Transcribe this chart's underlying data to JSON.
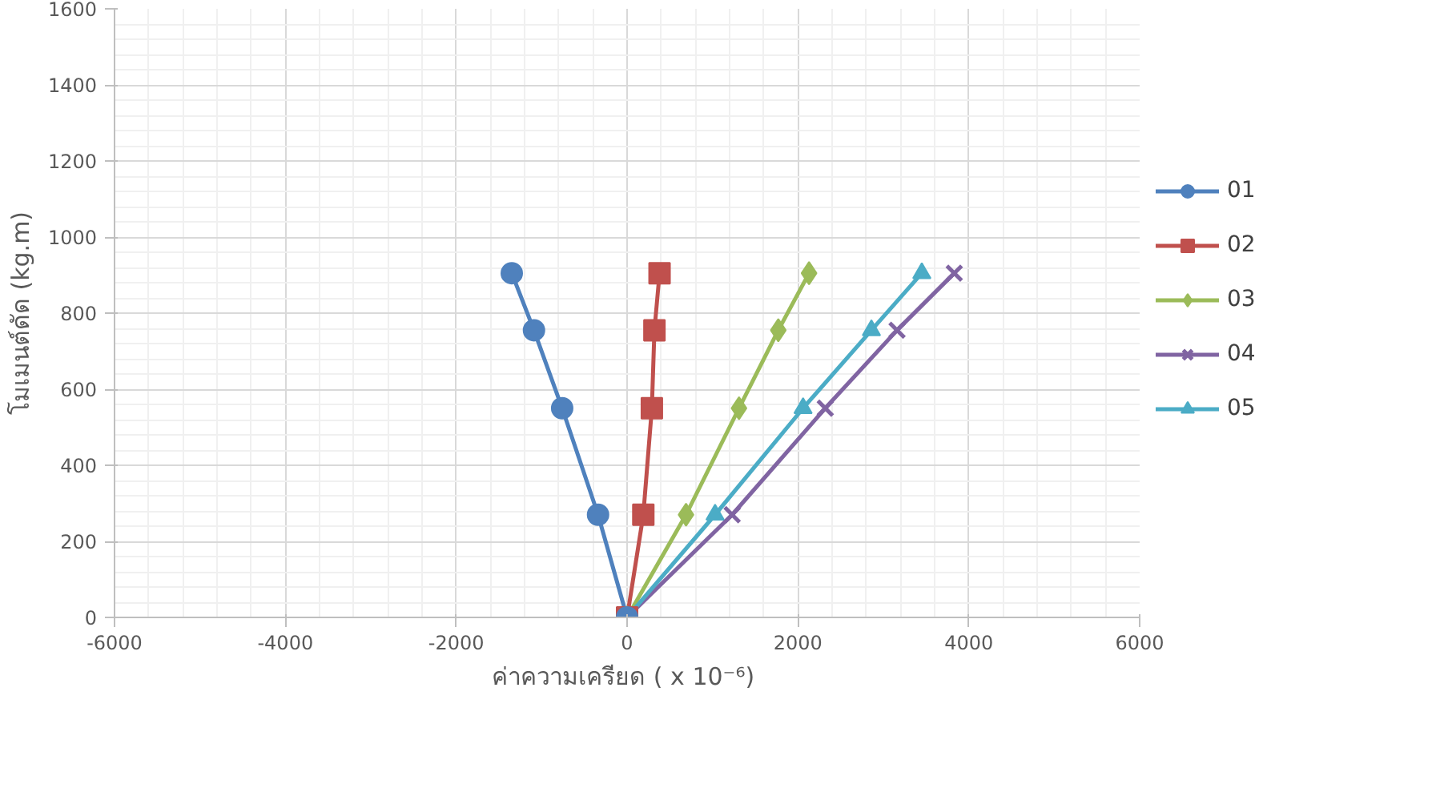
{
  "chart_data": {
    "type": "line",
    "xlabel": "ค่าความเครียด ( x  10⁻⁶)",
    "ylabel": "โมเมนต์ดัด (kg.m)",
    "xlim": [
      -6000,
      6000
    ],
    "xticks": [
      -6000,
      -4000,
      -2000,
      0,
      2000,
      4000,
      6000
    ],
    "ylim": [
      0,
      1600
    ],
    "yticks": [
      0,
      200,
      400,
      600,
      800,
      1000,
      1200,
      1400,
      1600
    ],
    "grid": true,
    "legend": "right",
    "line_style": "solid",
    "series": [
      {
        "name": "01",
        "color": "#4f81bd",
        "marker": "circle",
        "x": [
          0,
          -340,
          -760,
          -1090,
          -1350
        ],
        "values": [
          0,
          270,
          550,
          755,
          905
        ]
      },
      {
        "name": "02",
        "color": "#c0504d",
        "marker": "square",
        "x": [
          0,
          190,
          290,
          320,
          380
        ],
        "values": [
          0,
          270,
          550,
          755,
          905
        ]
      },
      {
        "name": "03",
        "color": "#9bbb59",
        "marker": "diamond",
        "x": [
          0,
          690,
          1310,
          1770,
          2130
        ],
        "values": [
          0,
          270,
          550,
          755,
          905
        ]
      },
      {
        "name": "04",
        "color": "#8064a2",
        "marker": "x",
        "x": [
          0,
          1230,
          2320,
          3160,
          3830
        ],
        "values": [
          0,
          270,
          550,
          755,
          905
        ]
      },
      {
        "name": "05",
        "color": "#4bacc6",
        "marker": "triangle",
        "x": [
          0,
          1030,
          2060,
          2860,
          3450
        ],
        "values": [
          0,
          270,
          550,
          755,
          905
        ]
      }
    ]
  }
}
